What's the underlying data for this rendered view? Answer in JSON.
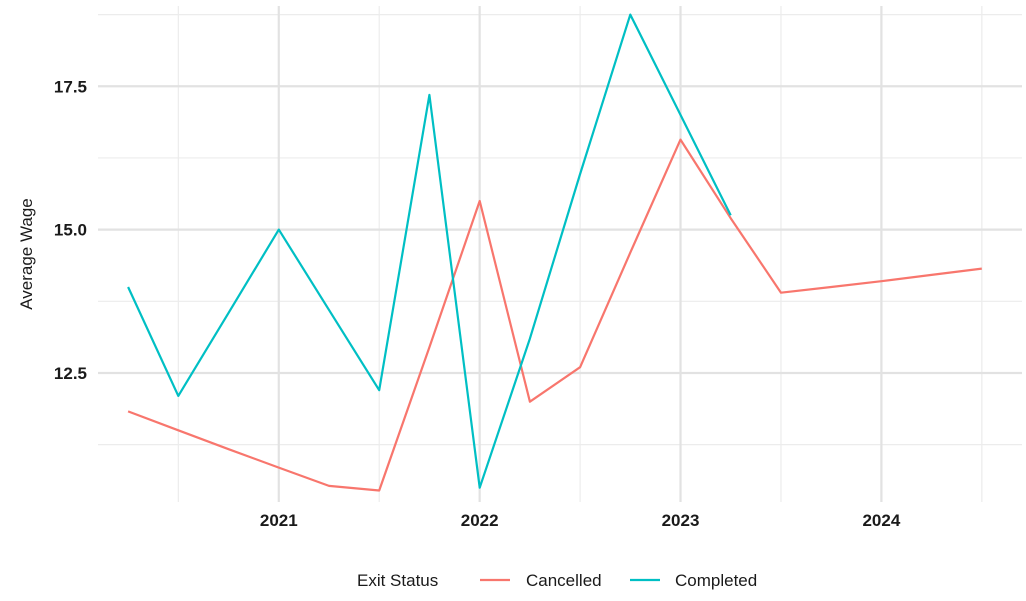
{
  "chart_data": {
    "type": "line",
    "title": "",
    "xlabel": "",
    "ylabel": "Average Wage",
    "xlim": [
      2020.1,
      2024.7
    ],
    "ylim": [
      10.25,
      18.9
    ],
    "x_ticks": [
      2021,
      2022,
      2023,
      2024
    ],
    "x_tick_labels": [
      "2021",
      "2022",
      "2023",
      "2024"
    ],
    "x_minor_ticks": [
      2020.5,
      2021.5,
      2022.5,
      2023.5,
      2024.5
    ],
    "y_ticks": [
      12.5,
      15.0,
      17.5
    ],
    "y_tick_labels": [
      "12.5",
      "15.0",
      "17.5"
    ],
    "y_minor_ticks": [
      11.25,
      13.75,
      16.25,
      18.75
    ],
    "grid": true,
    "legend": {
      "title": "Exit Status",
      "position": "bottom"
    },
    "series": [
      {
        "name": "Cancelled",
        "color": "#F8766D",
        "x": [
          2020.25,
          2020.5,
          2020.75,
          2021.0,
          2021.25,
          2021.5,
          2021.75,
          2022.0,
          2022.25,
          2022.5,
          2022.75,
          2023.0,
          2023.25,
          2023.5,
          2023.75,
          2024.0,
          2024.25,
          2024.5
        ],
        "y": [
          11.83,
          11.5,
          11.17,
          10.85,
          10.53,
          10.45,
          12.95,
          15.5,
          12.0,
          12.6,
          14.6,
          16.57,
          15.2,
          13.9,
          14.0,
          14.1,
          14.21,
          14.32
        ]
      },
      {
        "name": "Completed",
        "color": "#00BFC4",
        "x": [
          2020.25,
          2020.5,
          2020.75,
          2021.0,
          2021.25,
          2021.5,
          2021.75,
          2022.0,
          2022.25,
          2022.5,
          2022.75,
          2023.0,
          2023.25
        ],
        "y": [
          14.0,
          12.1,
          13.55,
          15.0,
          13.6,
          12.2,
          17.35,
          10.5,
          13.1,
          15.97,
          18.75,
          17.0,
          15.25
        ]
      }
    ]
  }
}
